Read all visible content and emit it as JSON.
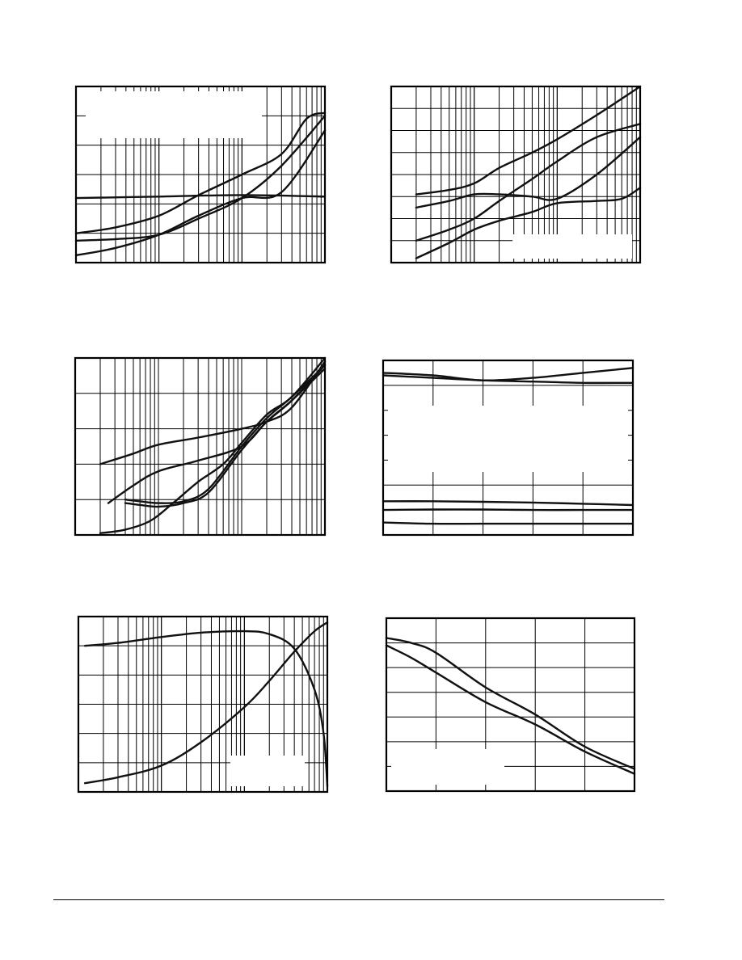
{
  "colors": {
    "curve": "#111111",
    "frame": "#000000",
    "background": "#ffffff"
  },
  "chart_data": [
    {
      "id": "chart-1",
      "type": "line",
      "title": "",
      "xlabel": "",
      "ylabel": "",
      "xscale": "log",
      "xlim": [
        1,
        1000
      ],
      "ylim": [
        0,
        6
      ],
      "grid": true,
      "series": [
        {
          "x": [
            1,
            3,
            10,
            30,
            100,
            300,
            600,
            1000
          ],
          "y": [
            1.0,
            1.2,
            1.6,
            2.3,
            3.0,
            3.7,
            4.9,
            5.1
          ]
        },
        {
          "x": [
            1,
            3,
            10,
            30,
            100,
            300,
            1000
          ],
          "y": [
            0.75,
            0.8,
            0.95,
            1.5,
            2.2,
            3.3,
            5.0
          ]
        },
        {
          "x": [
            1,
            3,
            10,
            30,
            100,
            300,
            1000
          ],
          "y": [
            0.25,
            0.5,
            0.95,
            1.6,
            2.2,
            2.4,
            4.5
          ]
        },
        {
          "x": [
            1,
            10,
            100,
            1000
          ],
          "y": [
            2.2,
            2.25,
            2.3,
            2.25
          ]
        }
      ]
    },
    {
      "id": "chart-2",
      "type": "line",
      "title": "",
      "xlabel": "",
      "ylabel": "",
      "xscale": "log",
      "xlim": [
        0.1,
        100
      ],
      "ylim": [
        0,
        8
      ],
      "grid": true,
      "series": [
        {
          "x": [
            0.2,
            0.5,
            1,
            2,
            5,
            10,
            30,
            100
          ],
          "y": [
            3.1,
            3.3,
            3.6,
            4.3,
            5.0,
            5.6,
            6.7,
            8.0
          ]
        },
        {
          "x": [
            0.2,
            0.5,
            1,
            2,
            5,
            10,
            30,
            100
          ],
          "y": [
            2.5,
            2.8,
            3.1,
            3.1,
            3.0,
            2.9,
            4.0,
            5.7
          ]
        },
        {
          "x": [
            0.2,
            0.5,
            1,
            2,
            5,
            10,
            30,
            100
          ],
          "y": [
            1.0,
            1.5,
            2.0,
            2.8,
            3.8,
            4.6,
            5.7,
            6.3
          ]
        },
        {
          "x": [
            0.2,
            0.5,
            1,
            2,
            5,
            10,
            30,
            60,
            100
          ],
          "y": [
            0.2,
            0.9,
            1.5,
            1.9,
            2.3,
            2.7,
            2.8,
            2.9,
            3.4
          ]
        }
      ]
    },
    {
      "id": "chart-3",
      "type": "line",
      "title": "",
      "xlabel": "",
      "ylabel": "",
      "xscale": "log",
      "xlim": [
        1,
        1000
      ],
      "ylim": [
        0,
        5
      ],
      "grid": true,
      "series": [
        {
          "x": [
            2,
            5,
            10,
            30,
            100,
            200,
            400,
            1000
          ],
          "y": [
            2.0,
            2.3,
            2.55,
            2.75,
            3.0,
            3.2,
            3.6,
            4.9
          ]
        },
        {
          "x": [
            2.5,
            5,
            10,
            30,
            100,
            200,
            400,
            1000
          ],
          "y": [
            0.9,
            1.4,
            1.8,
            2.1,
            2.5,
            3.2,
            3.8,
            4.8
          ]
        },
        {
          "x": [
            4,
            6,
            10,
            20,
            40,
            100,
            200,
            400,
            1000
          ],
          "y": [
            1.0,
            0.95,
            0.9,
            0.95,
            1.3,
            2.5,
            3.3,
            3.9,
            4.8
          ]
        },
        {
          "x": [
            4,
            6,
            10,
            20,
            40,
            100,
            200,
            400,
            1000
          ],
          "y": [
            0.9,
            0.85,
            0.8,
            0.9,
            1.2,
            2.4,
            3.2,
            3.8,
            4.7
          ]
        },
        {
          "x": [
            2,
            4,
            8,
            15,
            30,
            60,
            100,
            200,
            400,
            1000
          ],
          "y": [
            0.05,
            0.15,
            0.4,
            0.9,
            1.5,
            2.0,
            2.6,
            3.4,
            3.9,
            5.0
          ]
        }
      ]
    },
    {
      "id": "chart-4",
      "type": "line",
      "title": "",
      "xlabel": "",
      "ylabel": "",
      "xscale": "linear",
      "xlim": [
        0,
        5
      ],
      "ylim": [
        0,
        7
      ],
      "grid": true,
      "series": [
        {
          "x": [
            0,
            1,
            2,
            3,
            4,
            5
          ],
          "y": [
            6.5,
            6.4,
            6.2,
            6.3,
            6.5,
            6.7
          ]
        },
        {
          "x": [
            0,
            1,
            2,
            3,
            4,
            5
          ],
          "y": [
            6.4,
            6.3,
            6.2,
            6.15,
            6.1,
            6.1
          ]
        },
        {
          "x": [
            0,
            1,
            2,
            3,
            4,
            5
          ],
          "y": [
            1.35,
            1.35,
            1.33,
            1.3,
            1.25,
            1.2
          ]
        },
        {
          "x": [
            0,
            1,
            2,
            3,
            4,
            5
          ],
          "y": [
            1.0,
            1.02,
            1.02,
            1.0,
            1.0,
            1.0
          ]
        },
        {
          "x": [
            0,
            1,
            2,
            3,
            4,
            5
          ],
          "y": [
            0.5,
            0.45,
            0.45,
            0.45,
            0.45,
            0.45
          ]
        }
      ]
    },
    {
      "id": "chart-5",
      "type": "line",
      "title": "",
      "xlabel": "",
      "ylabel": "",
      "xscale": "log",
      "xlim": [
        1,
        1000
      ],
      "ylim": [
        0,
        6
      ],
      "grid": true,
      "series": [
        {
          "x": [
            1.2,
            3,
            10,
            30,
            100,
            200,
            400,
            700,
            900,
            1000
          ],
          "y": [
            5.0,
            5.1,
            5.3,
            5.45,
            5.5,
            5.4,
            4.9,
            3.5,
            2.0,
            0.2
          ]
        },
        {
          "x": [
            1.2,
            3,
            10,
            30,
            100,
            200,
            400,
            700,
            1000
          ],
          "y": [
            0.3,
            0.5,
            0.9,
            1.7,
            2.9,
            3.8,
            4.8,
            5.5,
            5.8
          ]
        }
      ]
    },
    {
      "id": "chart-6",
      "type": "line",
      "title": "",
      "xlabel": "",
      "ylabel": "",
      "xscale": "linear",
      "xlim": [
        0,
        5
      ],
      "ylim": [
        0,
        7
      ],
      "grid": true,
      "series": [
        {
          "x": [
            0,
            0.5,
            1,
            2,
            3,
            4,
            5
          ],
          "y": [
            6.2,
            6.0,
            5.6,
            4.2,
            3.1,
            1.8,
            0.9
          ]
        },
        {
          "x": [
            0,
            0.5,
            1,
            2,
            3,
            4,
            5
          ],
          "y": [
            5.9,
            5.4,
            4.8,
            3.6,
            2.7,
            1.6,
            0.7
          ]
        }
      ]
    }
  ]
}
